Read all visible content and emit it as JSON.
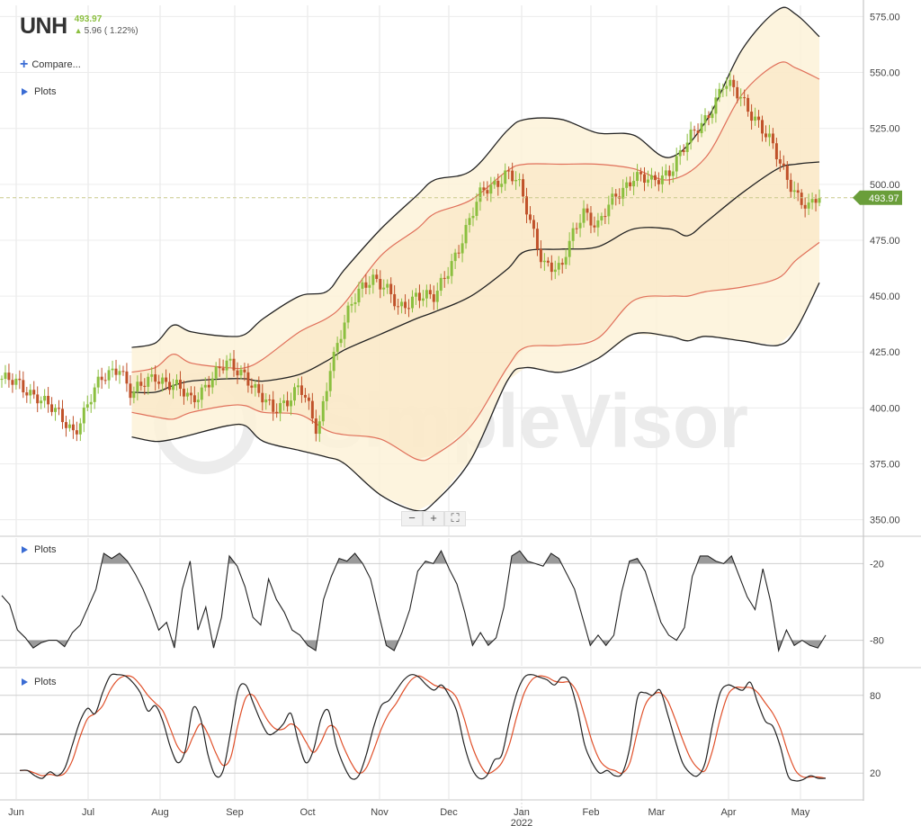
{
  "header": {
    "ticker": "UNH",
    "price": "493.97",
    "change": "5.96 ( 1.22%)",
    "change_icon": "arrow-up-icon"
  },
  "controls": {
    "compare_label": "Compare...",
    "plots_label": "Plots",
    "zoom_out": "−",
    "zoom_in": "+",
    "fit_icon": "fullscreen-icon"
  },
  "watermark": "SimpleVisor",
  "colors": {
    "up": "#8bbf3f",
    "down": "#c0522a",
    "outer_band": "#222222",
    "inner_band": "#e0705a",
    "band_fill": "#fdf2d8",
    "stoch_k": "#222222",
    "stoch_d": "#e0502a",
    "price_tag": "#6a9e3a"
  },
  "chart_data": [
    {
      "type": "candlestick",
      "title": "",
      "last_price": "493.97",
      "ylim": [
        343,
        580
      ],
      "y_ticks": [
        "575.00",
        "550.00",
        "525.00",
        "500.00",
        "475.00",
        "450.00",
        "425.00",
        "400.00",
        "375.00",
        "350.00"
      ],
      "x_ticks": [
        "Jun",
        "Jul",
        "Aug",
        "Sep",
        "Oct",
        "Nov",
        "Dec",
        "Jan",
        "Feb",
        "Mar",
        "Apr",
        "May"
      ],
      "year_label": "2022",
      "legend": "none",
      "grid": true,
      "close_path": [
        [
          0,
          413
        ],
        [
          2,
          406
        ],
        [
          3,
          397
        ],
        [
          4,
          390
        ],
        [
          4.8,
          402
        ],
        [
          5.5,
          412
        ],
        [
          6.5,
          420
        ],
        [
          7.2,
          405
        ],
        [
          8.5,
          415
        ],
        [
          9.5,
          410
        ],
        [
          10.5,
          403
        ],
        [
          11.5,
          413
        ],
        [
          12.5,
          419
        ],
        [
          13.5,
          416
        ],
        [
          14.2,
          406
        ],
        [
          15,
          398
        ],
        [
          16.5,
          410
        ],
        [
          17,
          399
        ],
        [
          17.5,
          388
        ],
        [
          18.2,
          420
        ],
        [
          19.1,
          440
        ],
        [
          19.8,
          452
        ],
        [
          20.5,
          460
        ],
        [
          21.2,
          454
        ],
        [
          22,
          443
        ],
        [
          23,
          452
        ],
        [
          24,
          448
        ],
        [
          25,
          467
        ],
        [
          26,
          485
        ],
        [
          26.6,
          496
        ],
        [
          27.2,
          500
        ],
        [
          28,
          506
        ],
        [
          28.6,
          500
        ],
        [
          29.2,
          485
        ],
        [
          30,
          466
        ],
        [
          31,
          460
        ],
        [
          31.3,
          470
        ],
        [
          32.2,
          490
        ],
        [
          33,
          480
        ],
        [
          34,
          495
        ],
        [
          35,
          504
        ],
        [
          36,
          500
        ],
        [
          37,
          507
        ],
        [
          38,
          518
        ],
        [
          39,
          530
        ],
        [
          40,
          545
        ],
        [
          41,
          538
        ],
        [
          41.8,
          530
        ],
        [
          42.6,
          518
        ],
        [
          43.2,
          507
        ],
        [
          44,
          497
        ],
        [
          44.7,
          489
        ],
        [
          45.3,
          494
        ]
      ],
      "outer_upper": [
        [
          7.2,
          427
        ],
        [
          8.5,
          429
        ],
        [
          9.5,
          437
        ],
        [
          10.5,
          434
        ],
        [
          12.5,
          432
        ],
        [
          13.5,
          433
        ],
        [
          14.5,
          440
        ],
        [
          16.5,
          450
        ],
        [
          18,
          452
        ],
        [
          19,
          462
        ],
        [
          21,
          480
        ],
        [
          23,
          495
        ],
        [
          24,
          502
        ],
        [
          26,
          506
        ],
        [
          28,
          524
        ],
        [
          29,
          529
        ],
        [
          31,
          529
        ],
        [
          33,
          523
        ],
        [
          35,
          522
        ],
        [
          37,
          512
        ],
        [
          39,
          528
        ],
        [
          41,
          560
        ],
        [
          43,
          578
        ],
        [
          44,
          576
        ],
        [
          45.3,
          566
        ]
      ],
      "inner_upper": [
        [
          7.2,
          416
        ],
        [
          8.5,
          418
        ],
        [
          9.5,
          424
        ],
        [
          10.5,
          420
        ],
        [
          12.5,
          418
        ],
        [
          13.5,
          418
        ],
        [
          14.5,
          422
        ],
        [
          16.5,
          434
        ],
        [
          18,
          440
        ],
        [
          19,
          447
        ],
        [
          21,
          468
        ],
        [
          23,
          480
        ],
        [
          24,
          487
        ],
        [
          26,
          493
        ],
        [
          28,
          506
        ],
        [
          29,
          509
        ],
        [
          31,
          509
        ],
        [
          33,
          509
        ],
        [
          35,
          507
        ],
        [
          37,
          502
        ],
        [
          39,
          512
        ],
        [
          41,
          540
        ],
        [
          43,
          554
        ],
        [
          44,
          552
        ],
        [
          45.3,
          547
        ]
      ],
      "middle_band": [
        [
          7.2,
          407
        ],
        [
          8.5,
          407
        ],
        [
          9.5,
          410
        ],
        [
          10.5,
          412
        ],
        [
          12.5,
          413
        ],
        [
          13.5,
          413
        ],
        [
          14.5,
          412
        ],
        [
          16.5,
          415
        ],
        [
          18,
          421
        ],
        [
          19,
          426
        ],
        [
          21,
          433
        ],
        [
          23,
          440
        ],
        [
          24,
          443
        ],
        [
          26,
          450
        ],
        [
          28,
          462
        ],
        [
          29,
          470
        ],
        [
          31,
          471
        ],
        [
          33,
          472
        ],
        [
          35,
          480
        ],
        [
          37,
          480
        ],
        [
          38,
          477
        ],
        [
          39,
          483
        ],
        [
          41,
          496
        ],
        [
          43,
          507
        ],
        [
          44,
          509
        ],
        [
          45.3,
          510
        ]
      ],
      "inner_lower": [
        [
          7.2,
          398
        ],
        [
          8.5,
          396
        ],
        [
          9.5,
          395
        ],
        [
          10.5,
          398
        ],
        [
          12.5,
          401
        ],
        [
          13.5,
          401
        ],
        [
          14.5,
          398
        ],
        [
          16.5,
          397
        ],
        [
          18,
          390
        ],
        [
          19,
          388
        ],
        [
          21,
          386
        ],
        [
          23,
          377
        ],
        [
          24,
          379
        ],
        [
          26,
          392
        ],
        [
          28,
          418
        ],
        [
          29,
          427
        ],
        [
          31,
          428
        ],
        [
          33,
          431
        ],
        [
          35,
          448
        ],
        [
          37,
          450
        ],
        [
          38,
          450
        ],
        [
          39,
          452
        ],
        [
          41,
          454
        ],
        [
          43,
          458
        ],
        [
          44,
          466
        ],
        [
          45.3,
          474
        ]
      ],
      "outer_lower": [
        [
          7.2,
          387
        ],
        [
          8.5,
          385
        ],
        [
          9.5,
          386
        ],
        [
          10.5,
          388
        ],
        [
          12.5,
          392
        ],
        [
          13.5,
          392
        ],
        [
          14.5,
          385
        ],
        [
          16.5,
          381
        ],
        [
          18,
          378
        ],
        [
          19,
          375
        ],
        [
          21,
          361
        ],
        [
          23,
          354
        ],
        [
          24,
          358
        ],
        [
          26,
          377
        ],
        [
          28,
          412
        ],
        [
          29,
          418
        ],
        [
          31,
          416
        ],
        [
          33,
          422
        ],
        [
          35,
          433
        ],
        [
          37,
          432
        ],
        [
          38,
          430
        ],
        [
          39,
          432
        ],
        [
          41,
          430
        ],
        [
          43,
          428
        ],
        [
          44,
          435
        ],
        [
          45.3,
          456
        ]
      ]
    },
    {
      "type": "line",
      "title": "",
      "ylim": [
        -100,
        0
      ],
      "y_ticks": [
        "-20",
        "-80"
      ],
      "levels": [
        -20,
        -80
      ],
      "values": [
        -45,
        -52,
        -72,
        -78,
        -86,
        -82,
        -80,
        -80,
        -85,
        -74,
        -68,
        -54,
        -40,
        -12,
        -16,
        -12,
        -18,
        -28,
        -40,
        -55,
        -72,
        -66,
        -86,
        -40,
        -18,
        -72,
        -54,
        -86,
        -62,
        -14,
        -22,
        -38,
        -62,
        -68,
        -32,
        -48,
        -58,
        -72,
        -76,
        -84,
        -88,
        -48,
        -30,
        -16,
        -18,
        -12,
        -20,
        -32,
        -58,
        -84,
        -88,
        -74,
        -56,
        -26,
        -18,
        -20,
        -10,
        -24,
        -36,
        -58,
        -84,
        -74,
        -84,
        -78,
        -54,
        -14,
        -10,
        -18,
        -20,
        -22,
        -12,
        -16,
        -28,
        -40,
        -62,
        -84,
        -76,
        -84,
        -76,
        -42,
        -18,
        -16,
        -26,
        -46,
        -66,
        -76,
        -80,
        -70,
        -30,
        -14,
        -14,
        -18,
        -20,
        -14,
        -30,
        -46,
        -56,
        -24,
        -50,
        -88,
        -72,
        -84,
        -80,
        -84,
        -86,
        -76
      ]
    },
    {
      "type": "line",
      "title": "",
      "ylim": [
        0,
        100
      ],
      "y_ticks": [
        "80",
        "20"
      ],
      "midline": 50,
      "series": [
        {
          "values": [
            22,
            22,
            18,
            16,
            21,
            18,
            24,
            42,
            60,
            70,
            66,
            82,
            95,
            96,
            95,
            90,
            82,
            68,
            72,
            60,
            40,
            28,
            38,
            70,
            62,
            34,
            18,
            22,
            52,
            84,
            88,
            74,
            60,
            50,
            52,
            58,
            66,
            44,
            28,
            38,
            62,
            68,
            42,
            26,
            16,
            18,
            34,
            56,
            72,
            76,
            84,
            92,
            96,
            94,
            88,
            84,
            88,
            80,
            68,
            42,
            24,
            16,
            18,
            30,
            34,
            60,
            82,
            94,
            96,
            94,
            92,
            88,
            94,
            90,
            70,
            42,
            28,
            20,
            22,
            18,
            20,
            40,
            78,
            82,
            80,
            84,
            66,
            46,
            28,
            20,
            18,
            28,
            58,
            82,
            88,
            86,
            84,
            90,
            74,
            60,
            56,
            40,
            18,
            14,
            15,
            18,
            16,
            16
          ]
        },
        {
          "values": [
            22,
            22,
            20,
            18,
            19,
            18,
            20,
            30,
            48,
            62,
            66,
            72,
            84,
            92,
            95,
            94,
            88,
            80,
            74,
            68,
            54,
            40,
            36,
            48,
            58,
            50,
            36,
            26,
            32,
            58,
            78,
            80,
            70,
            60,
            54,
            54,
            58,
            54,
            44,
            36,
            44,
            56,
            54,
            40,
            28,
            20,
            24,
            38,
            54,
            66,
            74,
            84,
            92,
            95,
            92,
            88,
            86,
            84,
            78,
            62,
            42,
            28,
            20,
            22,
            28,
            42,
            64,
            82,
            92,
            95,
            94,
            91,
            90,
            90,
            82,
            64,
            44,
            30,
            24,
            22,
            20,
            28,
            52,
            72,
            80,
            82,
            76,
            62,
            46,
            32,
            24,
            22,
            38,
            62,
            80,
            86,
            86,
            86,
            82,
            74,
            66,
            54,
            36,
            22,
            17,
            17,
            17,
            16
          ]
        }
      ]
    }
  ]
}
